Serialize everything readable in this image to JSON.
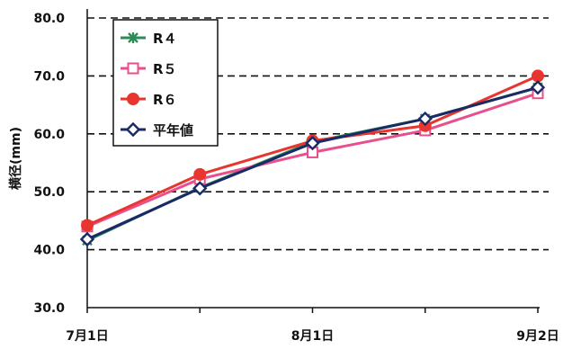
{
  "chart_data": {
    "type": "line",
    "title": "",
    "xlabel": "",
    "ylabel": "横径(mm)",
    "x_tick_labels": [
      "7月1日",
      "8月1日",
      "9月2日"
    ],
    "y_tick_labels": [
      "80.0",
      "70.0",
      "60.0",
      "50.0",
      "40.0",
      "30.0"
    ],
    "ylim": [
      30,
      80
    ],
    "y_ticks": [
      30,
      40,
      50,
      60,
      70,
      80
    ],
    "x_points": 5,
    "grid": "horizontal dashed",
    "legend_position": "top-left",
    "series": [
      {
        "name": "R４",
        "color": "#2e8b57",
        "marker": "x-star",
        "values": [
          41.6,
          50.7,
          58.6,
          62.6,
          68.0
        ]
      },
      {
        "name": "R５",
        "color": "#e7508c",
        "marker": "open-square",
        "values": [
          44.0,
          52.2,
          56.8,
          60.6,
          67.0
        ]
      },
      {
        "name": "R６",
        "color": "#e8352f",
        "marker": "filled-circle",
        "values": [
          44.2,
          53.0,
          58.8,
          61.4,
          70.0
        ]
      },
      {
        "name": "平年値",
        "color": "#1a2a66",
        "marker": "open-diamond",
        "values": [
          41.8,
          50.6,
          58.4,
          62.6,
          68.0
        ]
      }
    ]
  }
}
